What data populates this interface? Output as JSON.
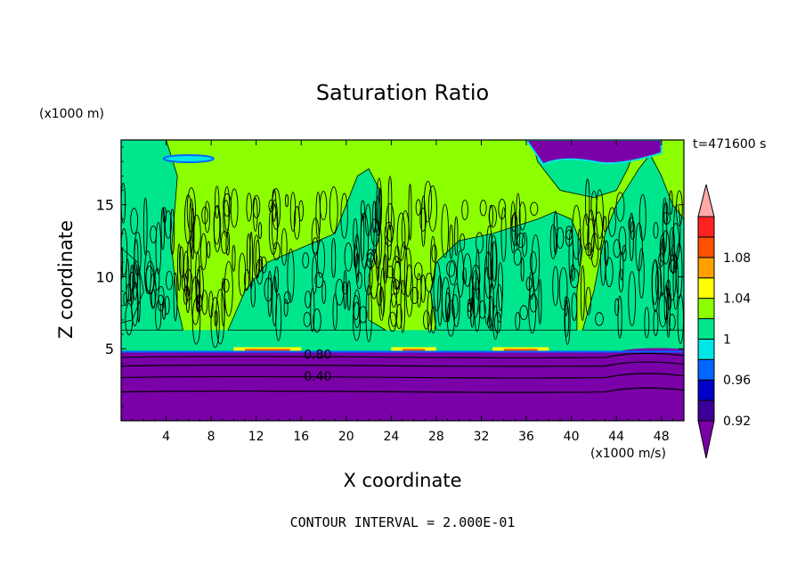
{
  "chart_data": {
    "type": "heatmap",
    "title": "Saturation Ratio",
    "xlabel": "X coordinate",
    "ylabel": "Z coordinate",
    "x_unit": "(x1000 m/s)",
    "y_unit": "(x1000 m)",
    "time_label": "t=471600 s",
    "contour_interval_text": "CONTOUR INTERVAL = 2.000E-01",
    "xlim": [
      0,
      50
    ],
    "ylim": [
      0,
      19.5
    ],
    "x_ticks": [
      4,
      8,
      12,
      16,
      20,
      24,
      28,
      32,
      36,
      40,
      44,
      48
    ],
    "y_ticks": [
      5,
      10,
      15
    ],
    "colorbar": {
      "levels": [
        0.92,
        0.94,
        0.96,
        0.98,
        1,
        1.02,
        1.04,
        1.06,
        1.08,
        1.1
      ],
      "tick_labels": [
        "0.92",
        "0.96",
        "1",
        "1.04",
        "1.08"
      ],
      "colors": {
        "below": "#7a00a8",
        "b092": "#3a0096",
        "b094": "#0000c8",
        "b096": "#0066ff",
        "b098": "#00e6e6",
        "b100": "#00e68c",
        "b102": "#8cff00",
        "b104": "#ffff00",
        "b106": "#ffa000",
        "b108": "#ff5000",
        "b110": "#ff2222",
        "above": "#ffaaaa"
      }
    },
    "contour_labels": [
      {
        "text": "0.80",
        "x": 17.5,
        "z": 4.6
      },
      {
        "text": "0.40",
        "x": 17.5,
        "z": 3.1
      }
    ],
    "regions": {
      "dry_layer_top_z": 4.8,
      "moist_columns": [
        [
          0,
          5
        ],
        [
          9.5,
          19.5
        ],
        [
          23.5,
          38
        ],
        [
          40.5,
          50
        ]
      ],
      "supersaturated_patches_x": [
        [
          10,
          16
        ],
        [
          24,
          28
        ],
        [
          33,
          38
        ]
      ],
      "upper_dry_patch": {
        "x": [
          36,
          48
        ],
        "z": [
          17.5,
          19.5
        ]
      }
    }
  }
}
